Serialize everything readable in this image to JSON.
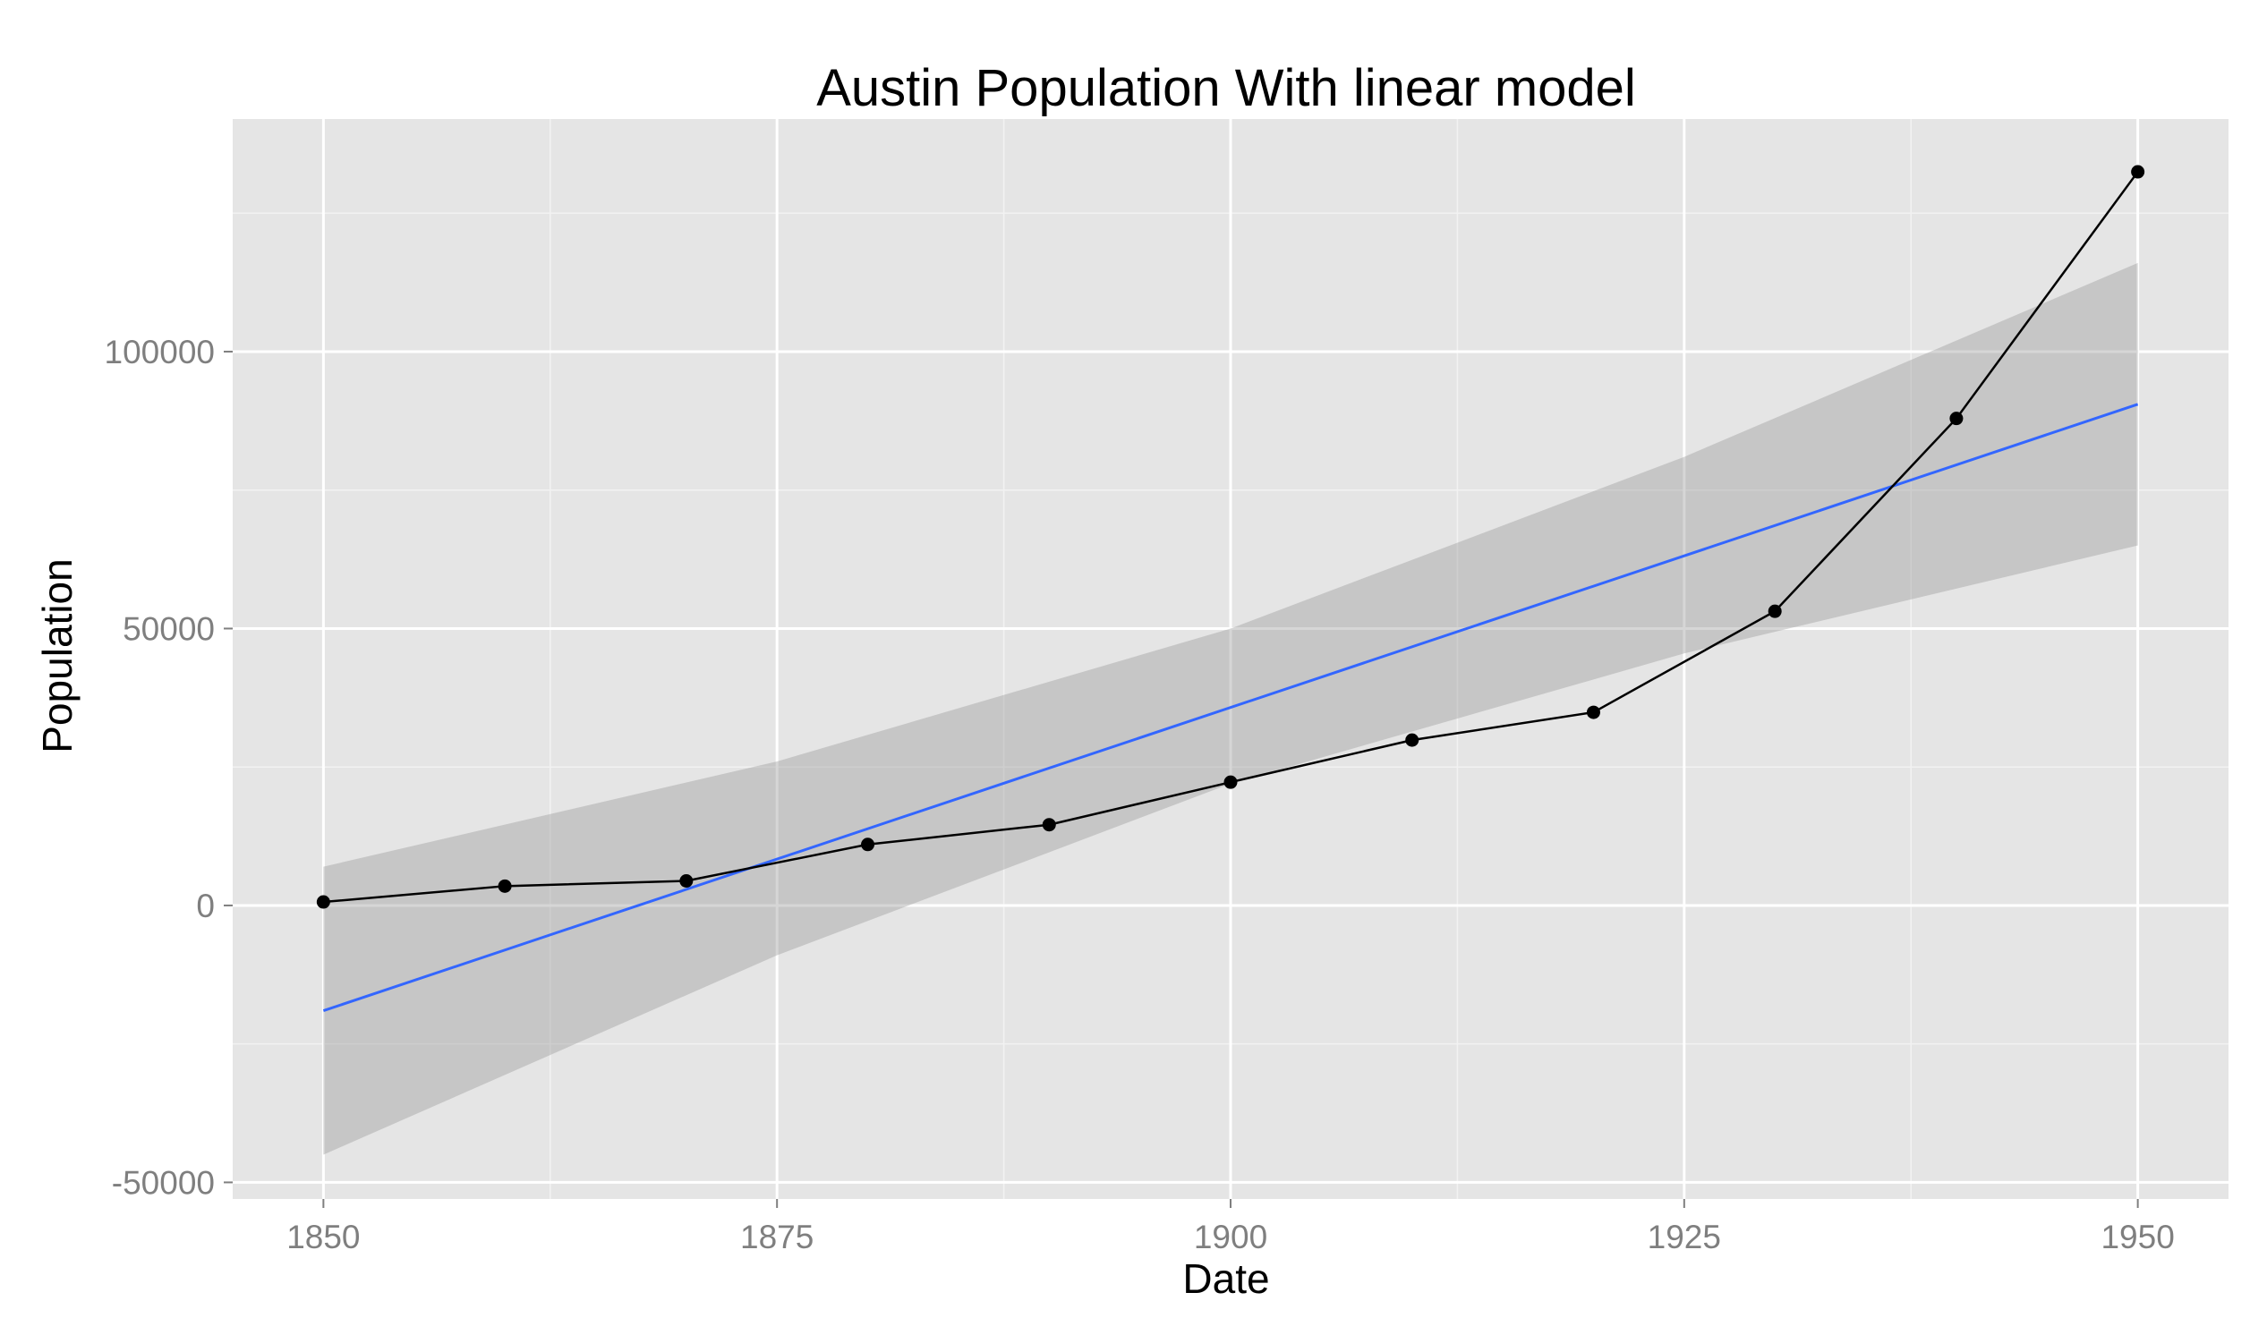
{
  "chart_data": {
    "type": "line",
    "title": "Austin Population With linear model",
    "xlabel": "Date",
    "ylabel": "Population",
    "xlim": [
      1845,
      1955
    ],
    "ylim": [
      -53000,
      142000
    ],
    "x_ticks": [
      1850,
      1875,
      1900,
      1925,
      1950
    ],
    "x_tick_labels": [
      "1850",
      "1875",
      "1900",
      "1925",
      "1950"
    ],
    "y_ticks": [
      -50000,
      0,
      50000,
      100000
    ],
    "y_tick_labels": [
      "-50000",
      "0",
      "50000",
      "100000"
    ],
    "grid": true,
    "legend": "none",
    "series": [
      {
        "kind": "line-with-points",
        "x": [
          1850,
          1860,
          1870,
          1880,
          1890,
          1900,
          1910,
          1920,
          1930,
          1940,
          1950
        ],
        "y": [
          629,
          3494,
          4428,
          11013,
          14575,
          22258,
          29860,
          34876,
          53120,
          87930,
          132459
        ]
      },
      {
        "kind": "linear-fit",
        "x": [
          1850,
          1950
        ],
        "y": [
          -19000,
          90500
        ]
      },
      {
        "kind": "confidence-band",
        "x": [
          1850,
          1875,
          1900,
          1925,
          1950
        ],
        "lower": [
          -45000,
          -9000,
          22000,
          45500,
          65000
        ],
        "upper": [
          7000,
          26000,
          50000,
          81000,
          116000
        ]
      }
    ],
    "colors": {
      "panel": "#e5e5e5",
      "grid_major": "#ffffff",
      "grid_minor": "#f2f2f2",
      "points": "#000000",
      "line": "#000000",
      "fit": "#3366ff",
      "band": "#999999"
    }
  }
}
